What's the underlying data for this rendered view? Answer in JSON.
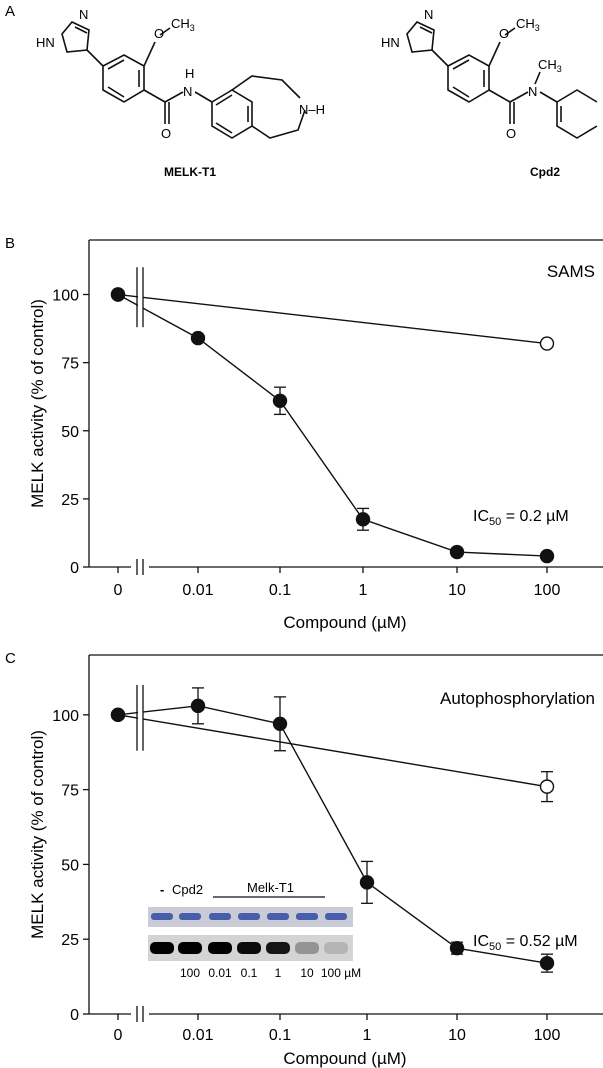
{
  "panel_a": {
    "label": "A",
    "mol1": {
      "name": "MELK-T1",
      "atoms": {
        "n": "N",
        "hn": "HN",
        "o_me": "O",
        "ch3": "CH",
        "ch3_sub": "3",
        "amide_h": "H",
        "amide_n": "N",
        "carbonyl_o": "O",
        "nh": "N–H"
      }
    },
    "mol2": {
      "name": "Cpd2",
      "atoms": {
        "n": "N",
        "hn": "HN",
        "o_me": "O",
        "ch3": "CH",
        "ch3_sub": "3",
        "nme": "CH",
        "nme_sub": "3",
        "amide_n": "N",
        "carbonyl_o": "O"
      }
    }
  },
  "chart_data": [
    {
      "panel": "B",
      "type": "line",
      "annotation_title": "SAMS",
      "ic50": {
        "prefix": "IC",
        "sub": "50",
        "value": " = 0.2 µM"
      },
      "xlabel": "Compound (µM)",
      "ylabel": "MELK activity (% of control)",
      "xscale": "log with axis break",
      "x_ticks": [
        "0",
        "0.01",
        "0.1",
        "1",
        "10",
        "100"
      ],
      "y_ticks": [
        "0",
        "25",
        "50",
        "75",
        "100"
      ],
      "ylim": [
        0,
        120
      ],
      "series": [
        {
          "marker": "filled",
          "points": [
            {
              "x": "0",
              "y": 100,
              "err": 0
            },
            {
              "x": "0.01",
              "y": 84,
              "err": 0
            },
            {
              "x": "0.1",
              "y": 61,
              "err": 5
            },
            {
              "x": "1",
              "y": 17.5,
              "err": 4
            },
            {
              "x": "10",
              "y": 5.5,
              "err": 0
            },
            {
              "x": "100",
              "y": 4,
              "err": 0
            }
          ]
        },
        {
          "marker": "open",
          "points": [
            {
              "x": "0",
              "y": 100,
              "err": 0
            },
            {
              "x": "100",
              "y": 82,
              "err": 0
            }
          ]
        }
      ]
    },
    {
      "panel": "C",
      "type": "line",
      "annotation_title": "Autophosphorylation",
      "ic50": {
        "prefix": "IC",
        "sub": "50",
        "value": " = 0.52 µM"
      },
      "xlabel": "Compound (µM)",
      "ylabel": "MELK activity (% of control)",
      "xscale": "log with axis break",
      "x_ticks": [
        "0",
        "0.01",
        "0.1",
        "1",
        "10",
        "100"
      ],
      "y_ticks": [
        "0",
        "25",
        "50",
        "75",
        "100"
      ],
      "ylim": [
        0,
        120
      ],
      "series": [
        {
          "marker": "filled",
          "points": [
            {
              "x": "0",
              "y": 100,
              "err": 0
            },
            {
              "x": "0.01",
              "y": 103,
              "err": 6
            },
            {
              "x": "0.1",
              "y": 97,
              "err": 9
            },
            {
              "x": "1",
              "y": 44,
              "err": 7
            },
            {
              "x": "10",
              "y": 22,
              "err": 2
            },
            {
              "x": "100",
              "y": 17,
              "err": 3
            }
          ]
        },
        {
          "marker": "open",
          "points": [
            {
              "x": "0",
              "y": 100,
              "err": 0
            },
            {
              "x": "100",
              "y": 76,
              "err": 5
            }
          ]
        }
      ],
      "inset": {
        "labels": {
          "dash": "-",
          "cpd2": "Cpd2",
          "melk": "Melk-T1"
        },
        "lanes": [
          "100",
          "0.01",
          "0.1",
          "1",
          "10",
          "100 µM"
        ],
        "band_intensity": [
          1.0,
          1.0,
          1.0,
          0.95,
          0.9,
          0.3,
          0.15
        ]
      }
    }
  ]
}
